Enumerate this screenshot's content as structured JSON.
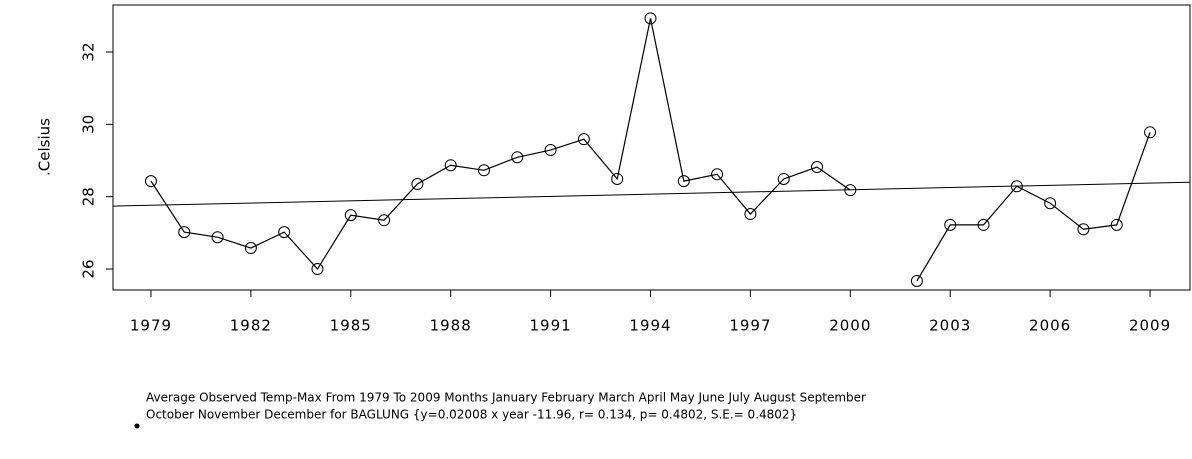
{
  "chart_data": {
    "type": "line",
    "ylabel": ".Celsius",
    "x": [
      1979,
      1980,
      1981,
      1982,
      1983,
      1984,
      1985,
      1986,
      1987,
      1988,
      1989,
      1990,
      1991,
      1992,
      1993,
      1994,
      1995,
      1996,
      1997,
      1998,
      1999,
      2000,
      2001,
      2002,
      2003,
      2004,
      2005,
      2006,
      2007,
      2008,
      2009
    ],
    "series": [
      {
        "color": "#000000",
        "values": [
          28.43,
          27.02,
          26.88,
          26.58,
          27.02,
          26.0,
          27.49,
          27.35,
          28.35,
          28.87,
          28.73,
          29.09,
          29.29,
          29.59,
          28.49,
          32.93,
          28.43,
          28.62,
          27.52,
          28.49,
          28.82,
          28.18,
          null,
          25.67,
          27.22,
          27.22,
          28.29,
          27.82,
          27.1,
          27.22,
          29.78
        ]
      }
    ],
    "trend_line": {
      "x": [
        1977.86,
        2010.2
      ],
      "y": [
        27.74,
        28.4
      ]
    },
    "xlim": [
      1977.86,
      2010.2
    ],
    "ylim": [
      25.42,
      33.3
    ],
    "xticks": [
      1979,
      1982,
      1985,
      1988,
      1991,
      1994,
      1997,
      2000,
      2003,
      2006,
      2009
    ],
    "yticks": [
      26,
      28,
      30,
      32
    ],
    "caption": [
      "Average Observed Temp-Max From 1979 To 2009 Months January February March April May June July August September",
      "October November December for BAGLUNG {y=0.02008 x year -11.96, r= 0.134, p= 0.4802, S.E.= 0.4802}"
    ]
  }
}
